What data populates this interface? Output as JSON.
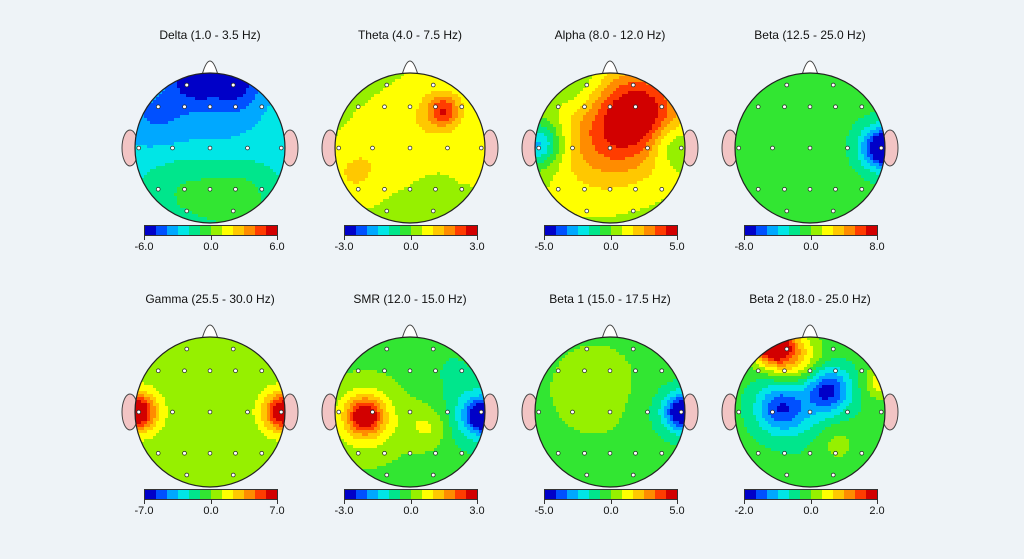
{
  "chart_data": [
    {
      "type": "heatmap",
      "title": "Delta (1.0 - 3.5 Hz)",
      "colorbar": {
        "min": -6.0,
        "mid": 0.0,
        "max": 6.0,
        "labels": [
          "-6.0",
          "0.0",
          "6.0"
        ]
      },
      "base_value": -2.4,
      "features": [
        {
          "x": -0.2,
          "y": 0.98,
          "value": -6.0,
          "sigma": 0.22
        },
        {
          "x": 0.35,
          "y": 0.9,
          "value": -5.0,
          "sigma": 0.25
        },
        {
          "x": -0.75,
          "y": 0.45,
          "value": -4.0,
          "sigma": 0.35
        },
        {
          "x": 0.1,
          "y": 0.5,
          "value": -3.5,
          "sigma": 0.45
        },
        {
          "x": -0.35,
          "y": -0.6,
          "value": -1.0,
          "sigma": 0.4
        },
        {
          "x": 0.4,
          "y": -0.7,
          "value": -0.5,
          "sigma": 0.35
        }
      ]
    },
    {
      "type": "heatmap",
      "title": "Theta (4.0 - 7.5 Hz)",
      "colorbar": {
        "min": -3.0,
        "mid": 0.0,
        "max": 3.0,
        "labels": [
          "-3.0",
          "0.0",
          "3.0"
        ]
      },
      "base_value": 0.4,
      "features": [
        {
          "x": 0.45,
          "y": 0.5,
          "value": 2.1,
          "sigma": 0.15
        },
        {
          "x": 0.3,
          "y": 0.45,
          "value": 0.9,
          "sigma": 0.35
        },
        {
          "x": -0.3,
          "y": 0.05,
          "value": 0.8,
          "sigma": 0.35
        },
        {
          "x": -0.75,
          "y": -0.35,
          "value": 1.0,
          "sigma": 0.25
        },
        {
          "x": 0.85,
          "y": -0.2,
          "value": 0.6,
          "sigma": 0.25
        },
        {
          "x": 0.1,
          "y": -0.8,
          "value": 0.4,
          "sigma": 0.3
        }
      ]
    },
    {
      "type": "heatmap",
      "title": "Alpha (8.0 - 12.0 Hz)",
      "colorbar": {
        "min": -5.0,
        "mid": 0.0,
        "max": 5.0,
        "labels": [
          "-5.0",
          "0.0",
          "5.0"
        ]
      },
      "base_value": 0.6,
      "features": [
        {
          "x": 0.4,
          "y": 0.5,
          "value": 4.2,
          "sigma": 0.4
        },
        {
          "x": -0.05,
          "y": 0.1,
          "value": 3.0,
          "sigma": 0.5
        },
        {
          "x": -0.95,
          "y": 0.05,
          "value": -3.0,
          "sigma": 0.22
        },
        {
          "x": 0.8,
          "y": 0.05,
          "value": -1.0,
          "sigma": 0.2
        },
        {
          "x": 0.2,
          "y": -0.85,
          "value": 0.5,
          "sigma": 0.3
        },
        {
          "x": -0.45,
          "y": 0.85,
          "value": -0.5,
          "sigma": 0.3
        }
      ]
    },
    {
      "type": "heatmap",
      "title": "Beta (12.5 - 25.0 Hz)",
      "colorbar": {
        "min": -8.0,
        "mid": 0.0,
        "max": 8.0,
        "labels": [
          "-8.0",
          "0.0",
          "8.0"
        ]
      },
      "base_value": -0.6,
      "features": [
        {
          "x": 0.98,
          "y": 0.0,
          "value": -8.0,
          "sigma": 0.17
        },
        {
          "x": 0.95,
          "y": 0.0,
          "value": -3.0,
          "sigma": 0.3
        },
        {
          "x": -0.3,
          "y": 0.6,
          "value": -0.8,
          "sigma": 0.35
        },
        {
          "x": 0.1,
          "y": -0.5,
          "value": -0.4,
          "sigma": 0.4
        }
      ]
    },
    {
      "type": "heatmap",
      "title": "Gamma (25.5 - 30.0 Hz)",
      "colorbar": {
        "min": -7.0,
        "mid": 0.0,
        "max": 7.0,
        "labels": [
          "-7.0",
          "0.0",
          "7.0"
        ]
      },
      "base_value": 0.0,
      "features": [
        {
          "x": -0.98,
          "y": 0.0,
          "value": 6.5,
          "sigma": 0.16
        },
        {
          "x": 0.98,
          "y": 0.0,
          "value": 6.0,
          "sigma": 0.16
        },
        {
          "x": -0.95,
          "y": 0.0,
          "value": 2.0,
          "sigma": 0.3
        },
        {
          "x": 0.95,
          "y": 0.0,
          "value": 2.0,
          "sigma": 0.3
        }
      ]
    },
    {
      "type": "heatmap",
      "title": "SMR (12.0 - 15.0 Hz)",
      "colorbar": {
        "min": -3.0,
        "mid": 0.0,
        "max": 3.0,
        "labels": [
          "-3.0",
          "0.0",
          "3.0"
        ]
      },
      "base_value": -0.2,
      "features": [
        {
          "x": -0.6,
          "y": -0.05,
          "value": 2.3,
          "sigma": 0.16
        },
        {
          "x": -0.6,
          "y": -0.1,
          "value": 1.0,
          "sigma": 0.35
        },
        {
          "x": 0.98,
          "y": -0.05,
          "value": -3.0,
          "sigma": 0.14
        },
        {
          "x": 0.9,
          "y": -0.05,
          "value": -1.5,
          "sigma": 0.3
        },
        {
          "x": 0.25,
          "y": -0.2,
          "value": 0.6,
          "sigma": 0.2
        },
        {
          "x": 0.55,
          "y": 0.6,
          "value": -0.5,
          "sigma": 0.25
        }
      ]
    },
    {
      "type": "heatmap",
      "title": "Beta 1 (15.0 - 17.5 Hz)",
      "colorbar": {
        "min": -5.0,
        "mid": 0.0,
        "max": 5.0,
        "labels": [
          "-5.0",
          "0.0",
          "5.0"
        ]
      },
      "base_value": -0.3,
      "features": [
        {
          "x": 0.98,
          "y": 0.0,
          "value": -4.8,
          "sigma": 0.15
        },
        {
          "x": 0.92,
          "y": 0.0,
          "value": -1.8,
          "sigma": 0.3
        },
        {
          "x": -0.2,
          "y": 0.3,
          "value": 0.3,
          "sigma": 0.5
        }
      ]
    },
    {
      "type": "heatmap",
      "title": "Beta 2 (18.0 - 25.0 Hz)",
      "colorbar": {
        "min": -2.0,
        "mid": 0.0,
        "max": 2.0,
        "labels": [
          "-2.0",
          "0.0",
          "2.0"
        ]
      },
      "base_value": -0.2,
      "features": [
        {
          "x": -0.5,
          "y": 0.9,
          "value": 2.4,
          "sigma": 0.18
        },
        {
          "x": -0.2,
          "y": 0.7,
          "value": 1.0,
          "sigma": 0.25
        },
        {
          "x": 0.25,
          "y": 0.3,
          "value": -1.5,
          "sigma": 0.2
        },
        {
          "x": -0.4,
          "y": 0.05,
          "value": -1.3,
          "sigma": 0.22
        },
        {
          "x": -0.1,
          "y": 0.15,
          "value": -0.8,
          "sigma": 0.4
        },
        {
          "x": 0.95,
          "y": 0.4,
          "value": 0.6,
          "sigma": 0.15
        },
        {
          "x": 0.35,
          "y": -0.4,
          "value": 0.2,
          "sigma": 0.2
        }
      ]
    }
  ],
  "electrodes": [
    [
      -0.31,
      0.84
    ],
    [
      0.31,
      0.84
    ],
    [
      -0.69,
      0.55
    ],
    [
      -0.34,
      0.55
    ],
    [
      0.0,
      0.55
    ],
    [
      0.34,
      0.55
    ],
    [
      0.69,
      0.55
    ],
    [
      -0.95,
      0.0
    ],
    [
      -0.5,
      0.0
    ],
    [
      0.0,
      0.0
    ],
    [
      0.5,
      0.0
    ],
    [
      0.95,
      0.0
    ],
    [
      -0.69,
      -0.55
    ],
    [
      -0.34,
      -0.55
    ],
    [
      0.0,
      -0.55
    ],
    [
      0.34,
      -0.55
    ],
    [
      0.69,
      -0.55
    ],
    [
      -0.31,
      -0.84
    ],
    [
      0.31,
      -0.84
    ]
  ],
  "colorscale": [
    "#0000c8",
    "#0050ff",
    "#00a8ff",
    "#00e6e6",
    "#00e68c",
    "#32e632",
    "#96f000",
    "#ffff00",
    "#ffc800",
    "#ff8c00",
    "#ff3c00",
    "#d20000"
  ]
}
